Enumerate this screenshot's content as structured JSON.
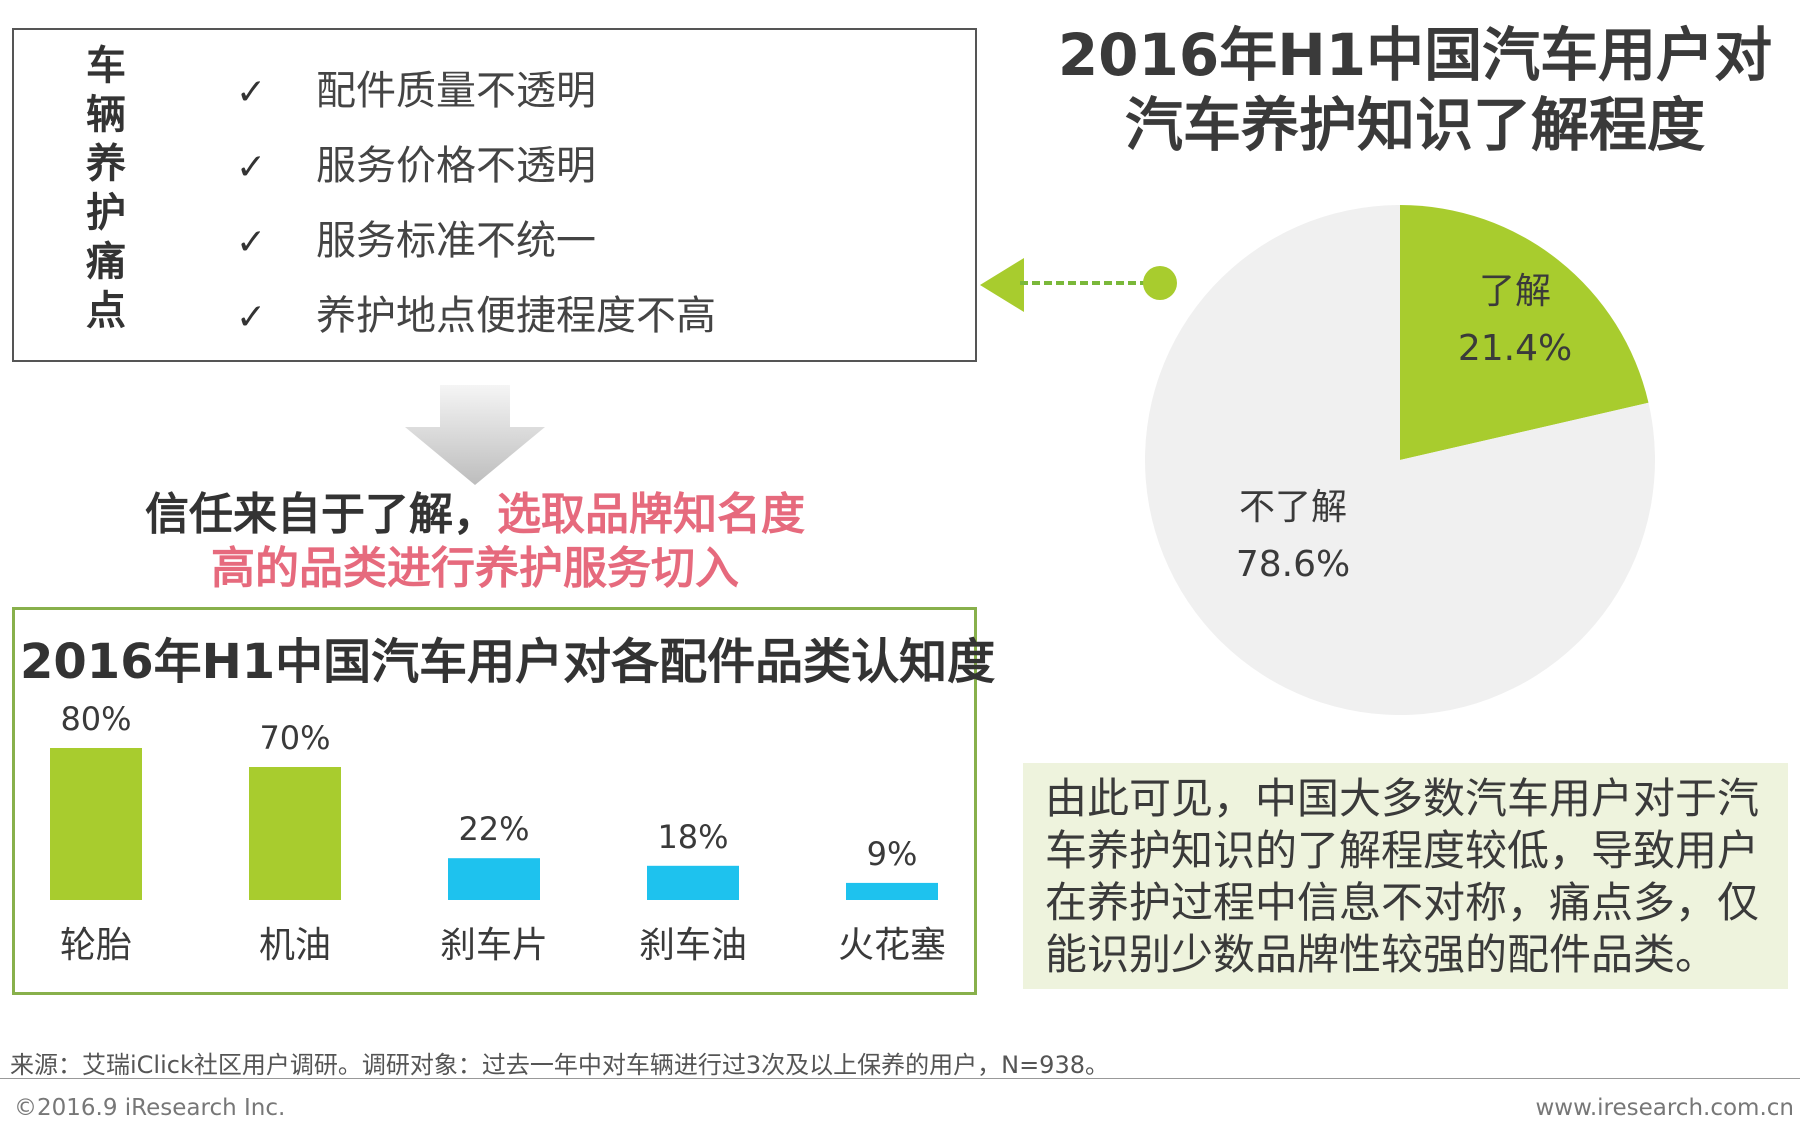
{
  "pain_points": {
    "vertical_title": [
      "车",
      "辆",
      "养",
      "护",
      "痛",
      "点"
    ],
    "check_symbol": "✓",
    "items": [
      "配件质量不透明",
      "服务价格不透明",
      "服务标准不统一",
      "养护地点便捷程度不高"
    ]
  },
  "trust": {
    "line1_dark": "信任来自于了解，",
    "line1_red": "选取品牌知名度",
    "line2_red": "高的品类进行养护服务切入"
  },
  "conclusion": "由此可见，中国大多数汽车用户对于汽车养护知识的了解程度较低，导致用户在养护过程中信息不对称，痛点多，仅能识别少数品牌性较强的配件品类。",
  "footer": {
    "source": "来源：艾瑞iClick社区用户调研。调研对象：过去一年中对车辆进行过3次及以上保养的用户，N=938。",
    "copyright": "©2016.9 iResearch Inc.",
    "website": "www.iresearch.com.cn"
  },
  "colors": {
    "green": "#a8cc2e",
    "blue": "#1ec2ee",
    "pie_grey": "#f0f0f0",
    "accent_red": "#e66a7d"
  },
  "chart_data": [
    {
      "type": "pie",
      "title_lines": [
        "2016年H1中国汽车用户对",
        "汽车养护知识了解程度"
      ],
      "slices": [
        {
          "label": "了解",
          "value": 21.4,
          "display": "21.4%",
          "color": "#a8cc2e"
        },
        {
          "label": "不了解",
          "value": 78.6,
          "display": "78.6%",
          "color": "#f0f0f0"
        }
      ]
    },
    {
      "type": "bar",
      "title": "2016年H1中国汽车用户对各配件品类认知度",
      "categories": [
        "轮胎",
        "机油",
        "刹车片",
        "刹车油",
        "火花塞"
      ],
      "values": [
        80,
        70,
        22,
        18,
        9
      ],
      "value_labels": [
        "80%",
        "70%",
        "22%",
        "18%",
        "9%"
      ],
      "colors": [
        "#a8cc2e",
        "#a8cc2e",
        "#1ec2ee",
        "#1ec2ee",
        "#1ec2ee"
      ],
      "ylim": [
        0,
        100
      ]
    }
  ]
}
